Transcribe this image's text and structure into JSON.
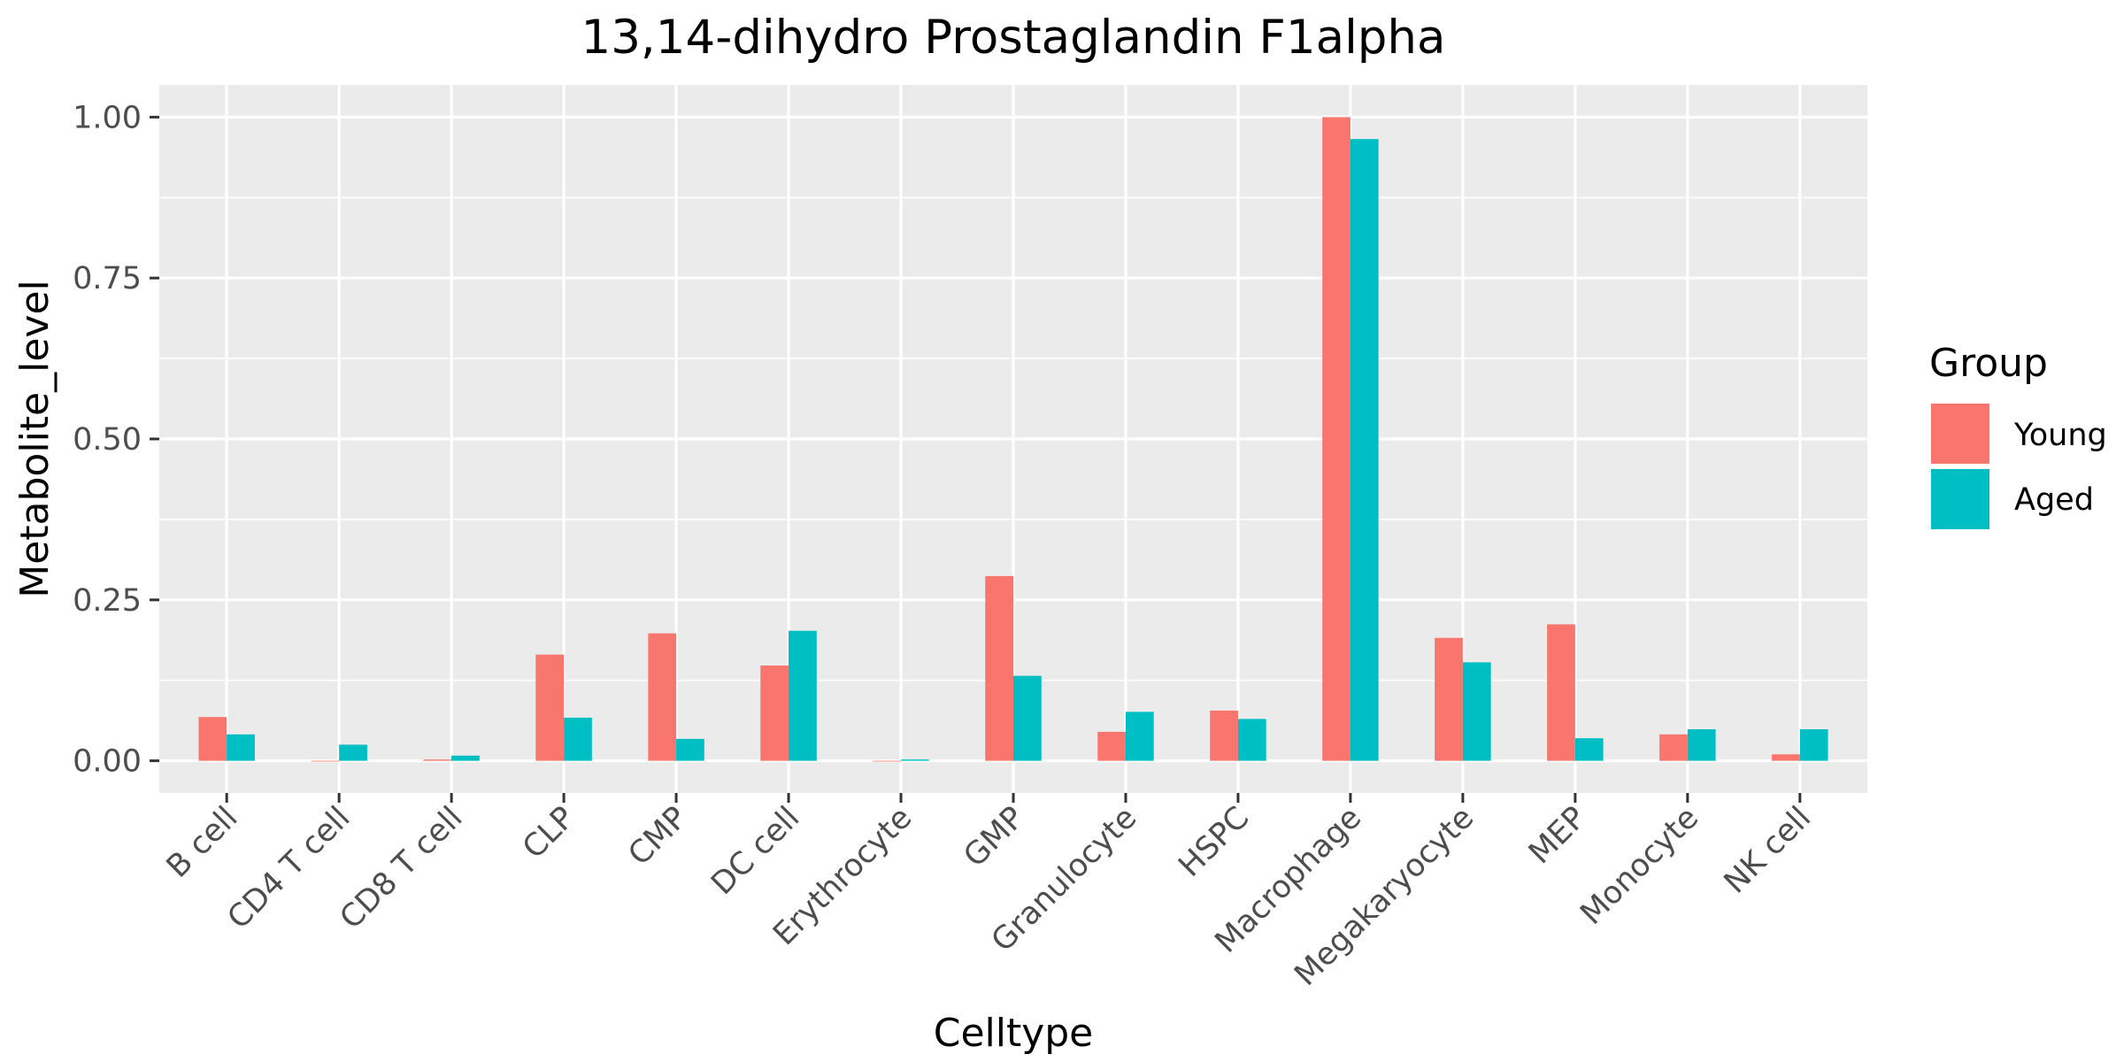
{
  "chart_data": {
    "type": "bar",
    "title": "13,14-dihydro Prostaglandin F1alpha",
    "xlabel": "Celltype",
    "ylabel": "Metabolite_level",
    "categories": [
      "B cell",
      "CD4 T cell",
      "CD8 T cell",
      "CLP",
      "CMP",
      "DC cell",
      "Erythrocyte",
      "GMP",
      "Granulocyte",
      "HSPC",
      "Macrophage",
      "Megakaryocyte",
      "MEP",
      "Monocyte",
      "NK cell"
    ],
    "series": [
      {
        "name": "Young",
        "color": "#F8766D",
        "values": [
          0.068,
          0.0,
          0.002,
          0.165,
          0.198,
          0.148,
          0.0,
          0.287,
          0.045,
          0.078,
          1.0,
          0.191,
          0.212,
          0.041,
          0.01
        ]
      },
      {
        "name": "Aged",
        "color": "#00BFC4",
        "values": [
          0.041,
          0.025,
          0.008,
          0.067,
          0.034,
          0.202,
          0.002,
          0.132,
          0.076,
          0.065,
          0.966,
          0.153,
          0.035,
          0.049,
          0.049
        ]
      }
    ],
    "ylim": [
      -0.05,
      1.05
    ],
    "yticks": [
      0.0,
      0.25,
      0.5,
      0.75,
      1.0
    ],
    "ytick_labels": [
      "0.00",
      "0.25",
      "0.50",
      "0.75",
      "1.00"
    ],
    "legend": {
      "title": "Group",
      "position": "right"
    },
    "grid": true,
    "panel_background": "#EBEBEB",
    "gridline_color": "#FFFFFF"
  }
}
